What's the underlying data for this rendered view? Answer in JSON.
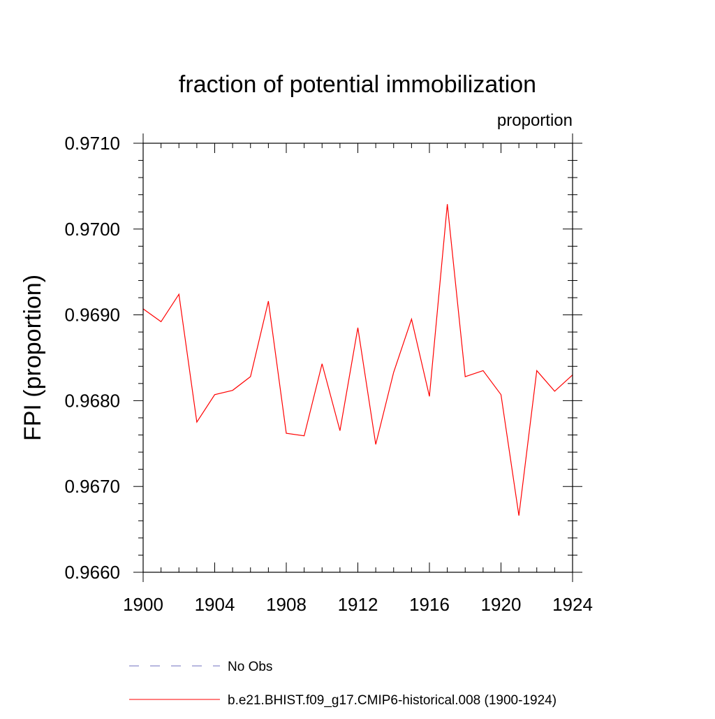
{
  "chart_data": {
    "type": "line",
    "title": "fraction of potential immobilization",
    "units_label": "proportion",
    "xlabel": "",
    "ylabel": "FPI  (proportion)",
    "xlim": [
      1900,
      1924
    ],
    "ylim": [
      0.966,
      0.971
    ],
    "x_ticks": [
      1900,
      1904,
      1908,
      1912,
      1916,
      1920,
      1924
    ],
    "x_tick_labels": [
      "1900",
      "1904",
      "1908",
      "1912",
      "1916",
      "1920",
      "1924"
    ],
    "y_ticks": [
      0.966,
      0.967,
      0.968,
      0.969,
      0.97,
      0.971
    ],
    "y_tick_labels": [
      "0.9660",
      "0.9670",
      "0.9680",
      "0.9690",
      "0.9700",
      "0.9710"
    ],
    "grid": false,
    "legend_position": "bottom",
    "series": [
      {
        "name": "b.e21.BHIST.f09_g17.CMIP6-historical.008 (1900-1924)",
        "color": "#ff0000",
        "style": "solid",
        "x": [
          1900,
          1901,
          1902,
          1903,
          1904,
          1905,
          1906,
          1907,
          1908,
          1909,
          1910,
          1911,
          1912,
          1913,
          1914,
          1915,
          1916,
          1917,
          1918,
          1919,
          1920,
          1921,
          1922,
          1923,
          1924
        ],
        "values": [
          0.96907,
          0.96892,
          0.96924,
          0.96775,
          0.96807,
          0.96812,
          0.96828,
          0.96916,
          0.96762,
          0.96759,
          0.96843,
          0.96765,
          0.96885,
          0.96749,
          0.96833,
          0.96895,
          0.96805,
          0.97029,
          0.96828,
          0.96835,
          0.96807,
          0.96666,
          0.96835,
          0.96811,
          0.9683
        ]
      }
    ],
    "legend": [
      {
        "label": "No Obs",
        "color": "#6f6fbf",
        "style": "dashed"
      },
      {
        "label": "b.e21.BHIST.f09_g17.CMIP6-historical.008 (1900-1924)",
        "color": "#ff0000",
        "style": "solid"
      }
    ]
  }
}
